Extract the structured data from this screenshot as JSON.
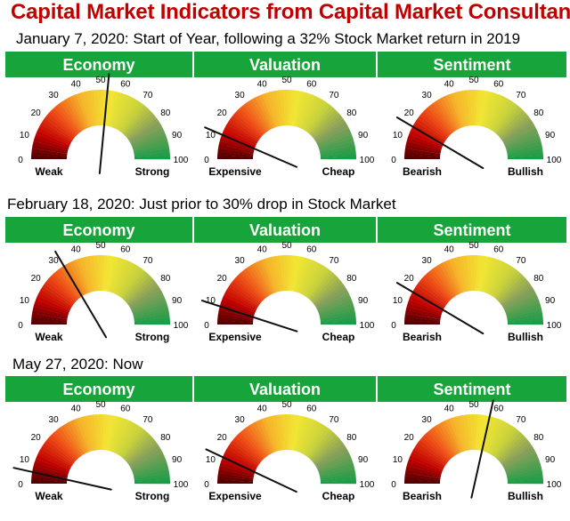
{
  "title": "Capital Market Indicators from Capital Market Consultants",
  "rows": [
    {
      "subtitle": "January 7, 2020: Start of Year, following a 32% Stock Market return in 2019",
      "gauges": [
        {
          "header": "Economy",
          "low_label": "Weak",
          "high_label": "Strong",
          "value": 53
        },
        {
          "header": "Valuation",
          "low_label": "Expensive",
          "high_label": "Cheap",
          "value": 13
        },
        {
          "header": "Sentiment",
          "low_label": "Bearish",
          "high_label": "Bullish",
          "value": 17
        }
      ]
    },
    {
      "subtitle": "February 18, 2020: Just prior to 30% drop in Stock Market",
      "gauges": [
        {
          "header": "Economy",
          "low_label": "Weak",
          "high_label": "Strong",
          "value": 33
        },
        {
          "header": "Valuation",
          "low_label": "Expensive",
          "high_label": "Cheap",
          "value": 10
        },
        {
          "header": "Sentiment",
          "low_label": "Bearish",
          "high_label": "Bullish",
          "value": 17
        }
      ]
    },
    {
      "subtitle": "May 27, 2020: Now",
      "gauges": [
        {
          "header": "Economy",
          "low_label": "Weak",
          "high_label": "Strong",
          "value": 7
        },
        {
          "header": "Valuation",
          "low_label": "Expensive",
          "high_label": "Cheap",
          "value": 14
        },
        {
          "header": "Sentiment",
          "low_label": "Bearish",
          "high_label": "Bullish",
          "value": 57
        }
      ]
    }
  ],
  "chart_data": {
    "type": "gauge",
    "scale": [
      0,
      100
    ],
    "ticks": [
      "0",
      "10",
      "20",
      "30",
      "40",
      "50",
      "60",
      "70",
      "80",
      "90",
      "100"
    ],
    "colors": {
      "header": "#17a43a",
      "low": "#5c0000",
      "mid": "#f2e02a",
      "high": "#1e9a4a"
    }
  }
}
